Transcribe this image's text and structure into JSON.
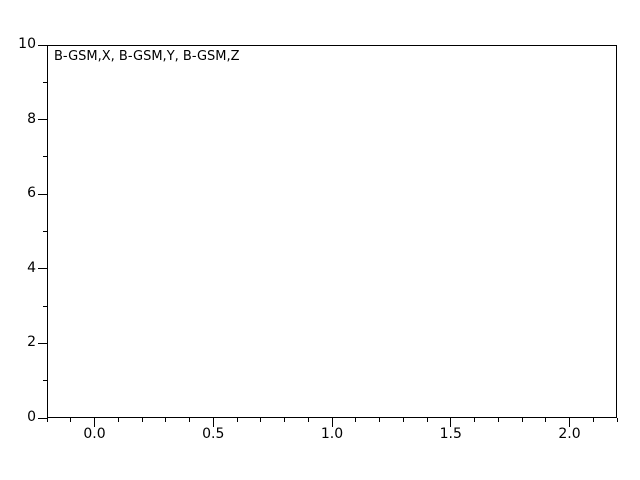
{
  "chart_data": {
    "type": "line",
    "title": "",
    "annotation": "B-GSM,X, B-GSM,Y, B-GSM,Z",
    "series": [
      {
        "name": "B-GSM,X",
        "x": [],
        "values": []
      },
      {
        "name": "B-GSM,Y",
        "x": [],
        "values": []
      },
      {
        "name": "B-GSM,Z",
        "x": [],
        "values": []
      }
    ],
    "xlim": [
      -0.2,
      2.2
    ],
    "ylim": [
      0,
      10
    ],
    "x_major_ticks": [
      0.0,
      0.5,
      1.0,
      1.5,
      2.0
    ],
    "x_major_tick_labels": [
      "0.0",
      "0.5",
      "1.0",
      "1.5",
      "2.0"
    ],
    "x_minor_tick_step": 0.1,
    "y_major_ticks": [
      0,
      2,
      4,
      6,
      8,
      10
    ],
    "y_major_tick_labels": [
      "0",
      "2",
      "4",
      "6",
      "8",
      "10"
    ],
    "y_minor_tick_step": 1,
    "grid": false,
    "legend_position": "top-left-inside",
    "colors": {
      "axis": "#000000",
      "text": "#000000",
      "background": "#ffffff"
    }
  }
}
